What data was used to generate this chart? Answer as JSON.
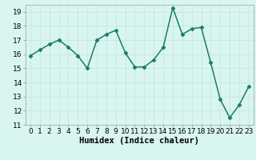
{
  "x": [
    0,
    1,
    2,
    3,
    4,
    5,
    6,
    7,
    8,
    9,
    10,
    11,
    12,
    13,
    14,
    15,
    16,
    17,
    18,
    19,
    20,
    21,
    22,
    23
  ],
  "y": [
    15.9,
    16.3,
    16.7,
    17.0,
    16.5,
    15.9,
    15.0,
    17.0,
    17.4,
    17.7,
    16.1,
    15.1,
    15.1,
    15.6,
    16.5,
    19.3,
    17.4,
    17.8,
    17.9,
    15.4,
    12.8,
    11.5,
    12.4,
    13.7
  ],
  "line_color": "#1a7a6e",
  "marker": "D",
  "marker_size": 2.5,
  "bg_color": "#d8f5f0",
  "grid_color_major": "#c8e8e0",
  "grid_color_minor": "#e0f5f0",
  "xlabel": "Humidex (Indice chaleur)",
  "xlim": [
    -0.5,
    23.5
  ],
  "ylim": [
    11,
    19.5
  ],
  "yticks": [
    11,
    12,
    13,
    14,
    15,
    16,
    17,
    18,
    19
  ],
  "xticks": [
    0,
    1,
    2,
    3,
    4,
    5,
    6,
    7,
    8,
    9,
    10,
    11,
    12,
    13,
    14,
    15,
    16,
    17,
    18,
    19,
    20,
    21,
    22,
    23
  ],
  "tick_fontsize": 6.5,
  "xlabel_fontsize": 7.5,
  "linewidth": 1.1
}
